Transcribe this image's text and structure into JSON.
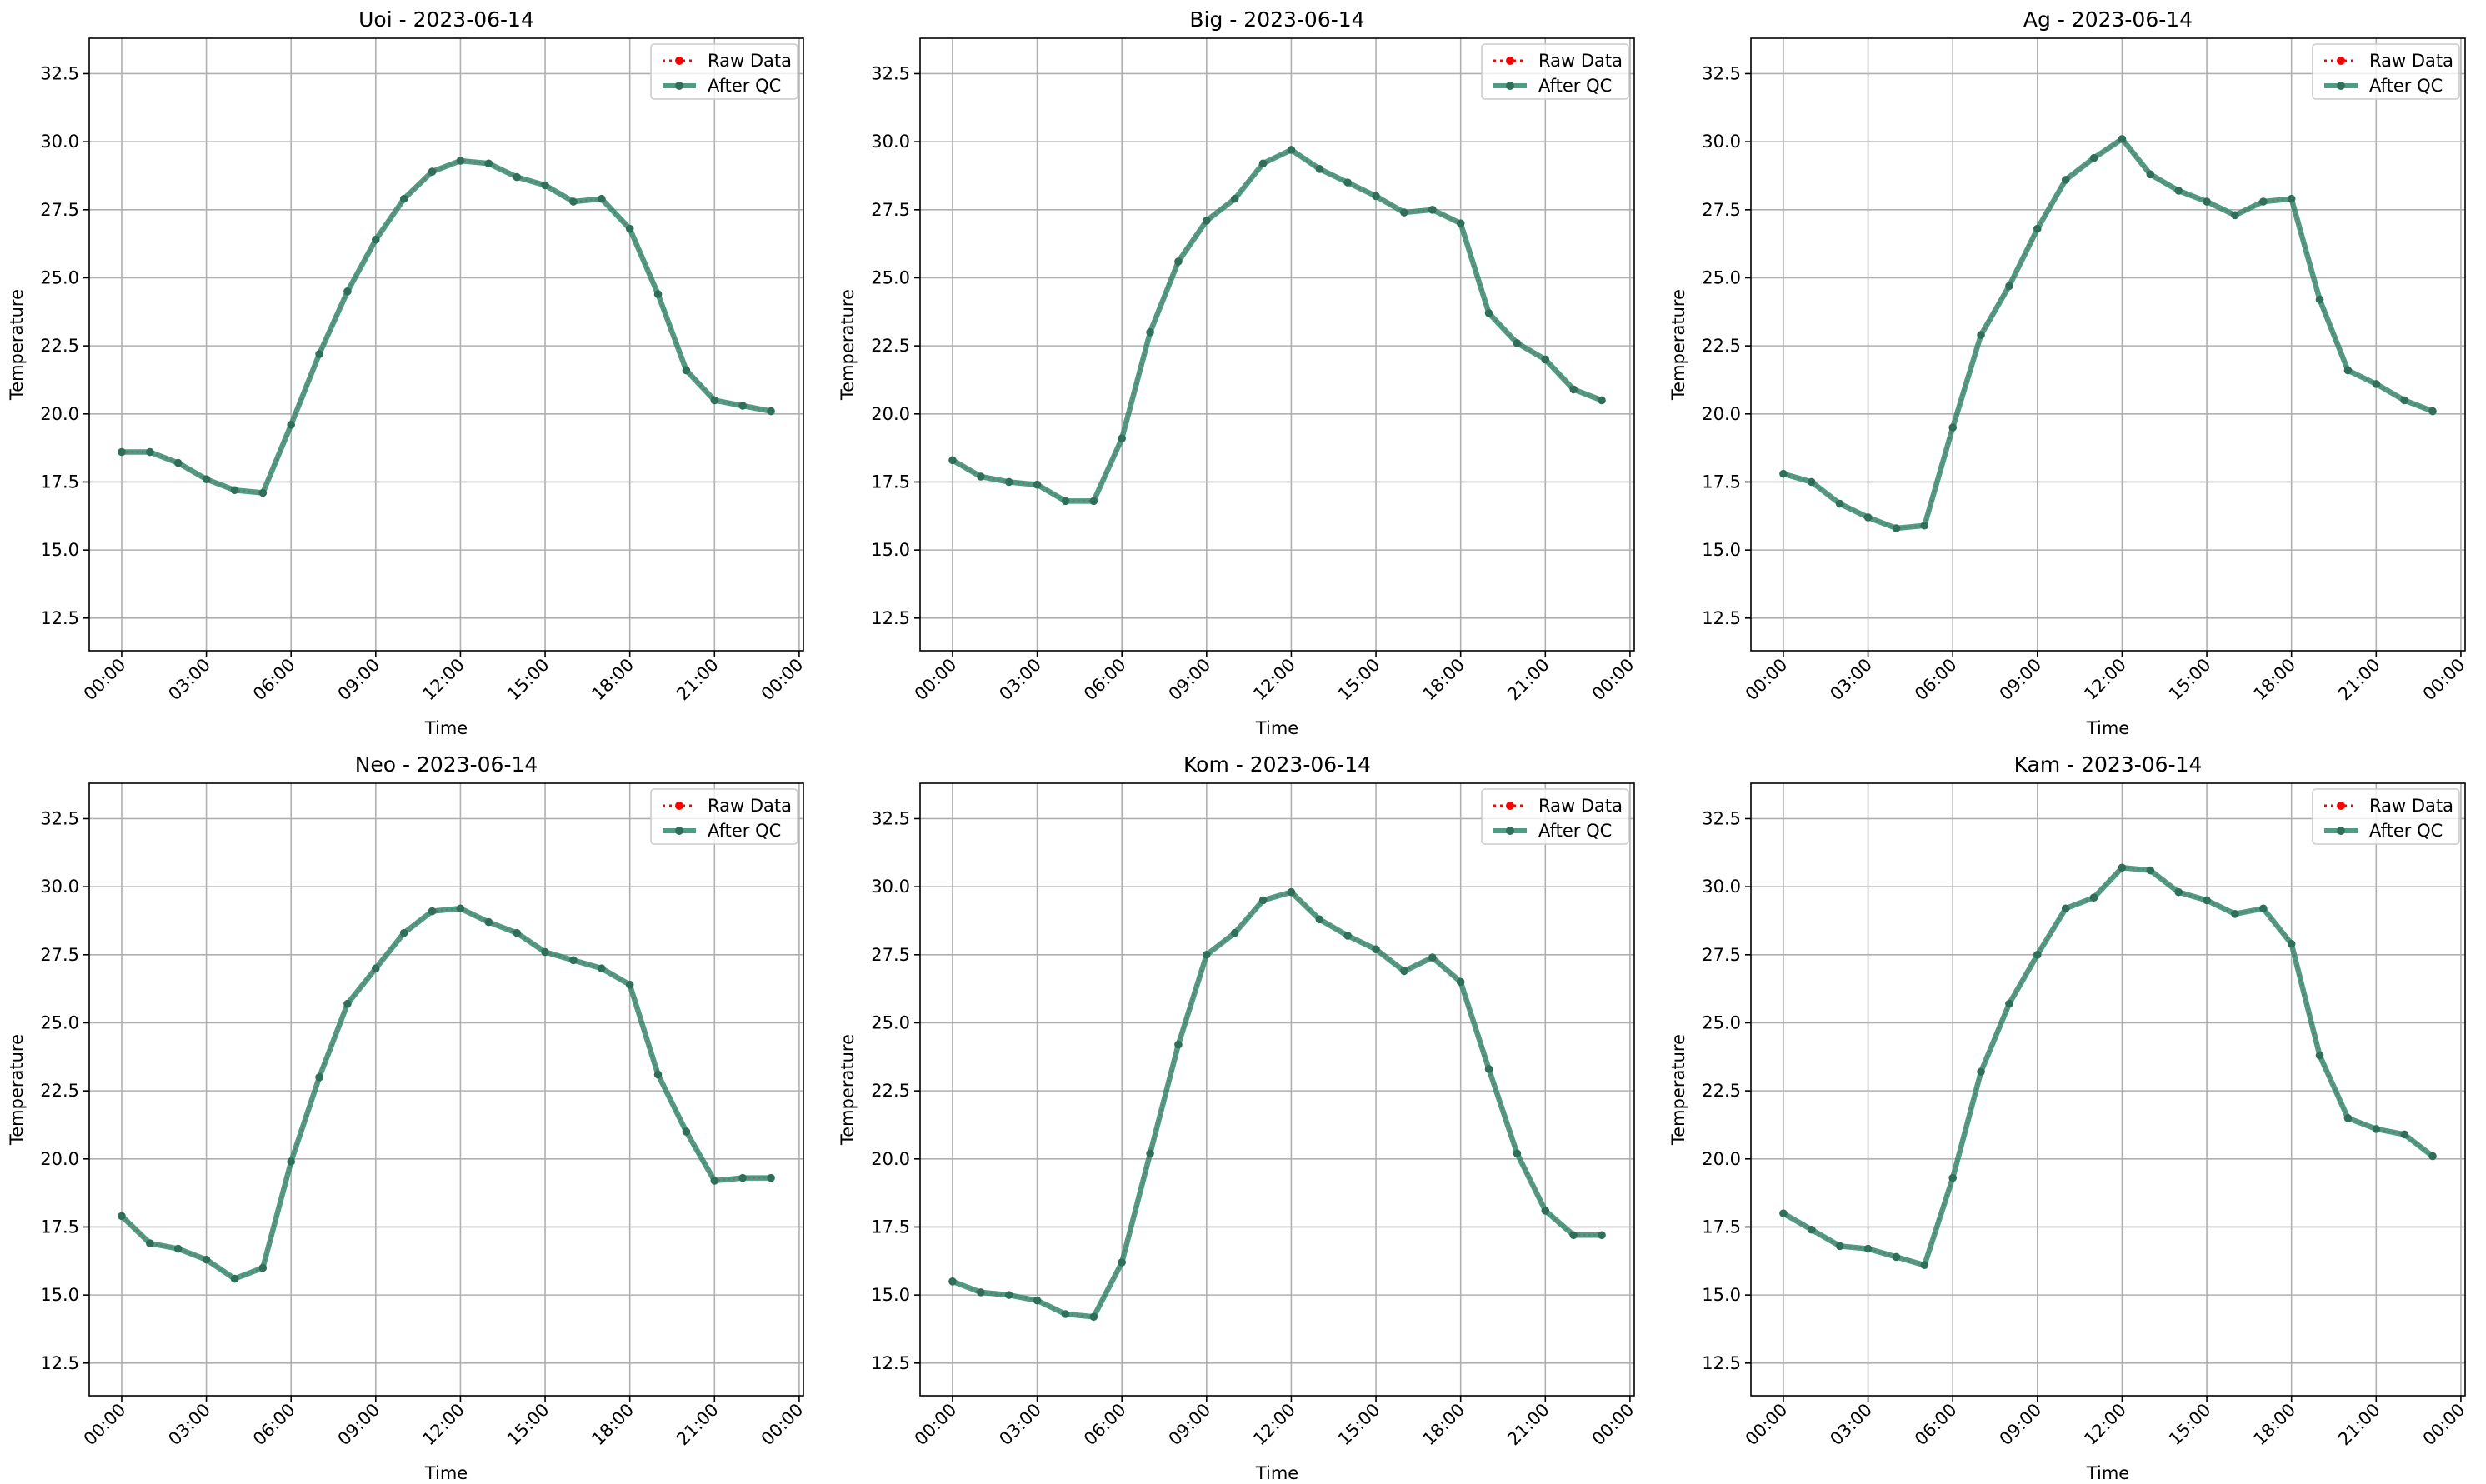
{
  "figure": {
    "style": {
      "raw_color": "#ff0000",
      "qc_color": "#2e8b6e",
      "qc_marker_color": "#2f6f5a",
      "grid_color": "#b0b0b0"
    }
  },
  "chart_data": [
    {
      "type": "line",
      "title": "Uoi - 2023-06-14",
      "xlabel": "Time",
      "ylabel": "Temperature",
      "x": [
        0,
        1,
        2,
        3,
        4,
        5,
        6,
        7,
        8,
        9,
        10,
        11,
        12,
        13,
        14,
        15,
        16,
        17,
        18,
        19,
        20,
        21,
        22,
        23
      ],
      "x_ticks": [
        "00:00",
        "03:00",
        "06:00",
        "09:00",
        "12:00",
        "15:00",
        "18:00",
        "21:00",
        "00:00"
      ],
      "xlim": [
        -1.15,
        24.15
      ],
      "ylim": [
        11.3,
        33.8
      ],
      "y_ticks": [
        "12.5",
        "15.0",
        "17.5",
        "20.0",
        "22.5",
        "25.0",
        "27.5",
        "30.0",
        "32.5"
      ],
      "grid": true,
      "legend_position": "upper right",
      "series": [
        {
          "name": "Raw Data",
          "style": "dotted-red-markers",
          "values": [
            18.6,
            18.6,
            18.2,
            17.6,
            17.2,
            17.1,
            19.6,
            22.2,
            24.5,
            26.4,
            27.9,
            28.9,
            29.3,
            29.2,
            28.7,
            28.4,
            27.8,
            27.9,
            26.8,
            24.4,
            21.6,
            20.5,
            20.3,
            20.1
          ]
        },
        {
          "name": "After QC",
          "style": "solid-green",
          "values": [
            18.6,
            18.6,
            18.2,
            17.6,
            17.2,
            17.1,
            19.6,
            22.2,
            24.5,
            26.4,
            27.9,
            28.9,
            29.3,
            29.2,
            28.7,
            28.4,
            27.8,
            27.9,
            26.8,
            24.4,
            21.6,
            20.5,
            20.3,
            20.1
          ]
        }
      ]
    },
    {
      "type": "line",
      "title": "Big - 2023-06-14",
      "xlabel": "Time",
      "ylabel": "Temperature",
      "x": [
        0,
        1,
        2,
        3,
        4,
        5,
        6,
        7,
        8,
        9,
        10,
        11,
        12,
        13,
        14,
        15,
        16,
        17,
        18,
        19,
        20,
        21,
        22,
        23
      ],
      "x_ticks": [
        "00:00",
        "03:00",
        "06:00",
        "09:00",
        "12:00",
        "15:00",
        "18:00",
        "21:00",
        "00:00"
      ],
      "xlim": [
        -1.15,
        24.15
      ],
      "ylim": [
        11.3,
        33.8
      ],
      "y_ticks": [
        "12.5",
        "15.0",
        "17.5",
        "20.0",
        "22.5",
        "25.0",
        "27.5",
        "30.0",
        "32.5"
      ],
      "grid": true,
      "legend_position": "upper right",
      "series": [
        {
          "name": "Raw Data",
          "style": "dotted-red-markers",
          "values": [
            18.3,
            17.7,
            17.5,
            17.4,
            16.8,
            16.8,
            19.1,
            23.0,
            25.6,
            27.1,
            27.9,
            29.2,
            29.7,
            29.0,
            28.5,
            28.0,
            27.4,
            27.5,
            27.0,
            23.7,
            22.6,
            22.0,
            20.9,
            20.5
          ]
        },
        {
          "name": "After QC",
          "style": "solid-green",
          "values": [
            18.3,
            17.7,
            17.5,
            17.4,
            16.8,
            16.8,
            19.1,
            23.0,
            25.6,
            27.1,
            27.9,
            29.2,
            29.7,
            29.0,
            28.5,
            28.0,
            27.4,
            27.5,
            27.0,
            23.7,
            22.6,
            22.0,
            20.9,
            20.5
          ]
        }
      ]
    },
    {
      "type": "line",
      "title": "Ag - 2023-06-14",
      "xlabel": "Time",
      "ylabel": "Temperature",
      "x": [
        0,
        1,
        2,
        3,
        4,
        5,
        6,
        7,
        8,
        9,
        10,
        11,
        12,
        13,
        14,
        15,
        16,
        17,
        18,
        19,
        20,
        21,
        22,
        23
      ],
      "x_ticks": [
        "00:00",
        "03:00",
        "06:00",
        "09:00",
        "12:00",
        "15:00",
        "18:00",
        "21:00",
        "00:00"
      ],
      "xlim": [
        -1.15,
        24.15
      ],
      "ylim": [
        11.3,
        33.8
      ],
      "y_ticks": [
        "12.5",
        "15.0",
        "17.5",
        "20.0",
        "22.5",
        "25.0",
        "27.5",
        "30.0",
        "32.5"
      ],
      "grid": true,
      "legend_position": "upper right",
      "series": [
        {
          "name": "Raw Data",
          "style": "dotted-red-markers",
          "values": [
            17.8,
            17.5,
            16.7,
            16.2,
            15.8,
            15.9,
            19.5,
            22.9,
            24.7,
            26.8,
            28.6,
            29.4,
            30.1,
            28.8,
            28.2,
            27.8,
            27.3,
            27.8,
            27.9,
            24.2,
            21.6,
            21.1,
            20.5,
            20.1
          ]
        },
        {
          "name": "After QC",
          "style": "solid-green",
          "values": [
            17.8,
            17.5,
            16.7,
            16.2,
            15.8,
            15.9,
            19.5,
            22.9,
            24.7,
            26.8,
            28.6,
            29.4,
            30.1,
            28.8,
            28.2,
            27.8,
            27.3,
            27.8,
            27.9,
            24.2,
            21.6,
            21.1,
            20.5,
            20.1
          ]
        }
      ]
    },
    {
      "type": "line",
      "title": "Neo - 2023-06-14",
      "xlabel": "Time",
      "ylabel": "Temperature",
      "x": [
        0,
        1,
        2,
        3,
        4,
        5,
        6,
        7,
        8,
        9,
        10,
        11,
        12,
        13,
        14,
        15,
        16,
        17,
        18,
        19,
        20,
        21,
        22,
        23
      ],
      "x_ticks": [
        "00:00",
        "03:00",
        "06:00",
        "09:00",
        "12:00",
        "15:00",
        "18:00",
        "21:00",
        "00:00"
      ],
      "xlim": [
        -1.15,
        24.15
      ],
      "ylim": [
        11.3,
        33.8
      ],
      "y_ticks": [
        "12.5",
        "15.0",
        "17.5",
        "20.0",
        "22.5",
        "25.0",
        "27.5",
        "30.0",
        "32.5"
      ],
      "grid": true,
      "legend_position": "upper right",
      "series": [
        {
          "name": "Raw Data",
          "style": "dotted-red-markers",
          "values": [
            17.9,
            16.9,
            16.7,
            16.3,
            15.6,
            16.0,
            19.9,
            23.0,
            25.7,
            27.0,
            28.3,
            29.1,
            29.2,
            28.7,
            28.3,
            27.6,
            27.3,
            27.0,
            26.4,
            23.1,
            21.0,
            19.2,
            19.3,
            19.3
          ]
        },
        {
          "name": "After QC",
          "style": "solid-green",
          "values": [
            17.9,
            16.9,
            16.7,
            16.3,
            15.6,
            16.0,
            19.9,
            23.0,
            25.7,
            27.0,
            28.3,
            29.1,
            29.2,
            28.7,
            28.3,
            27.6,
            27.3,
            27.0,
            26.4,
            23.1,
            21.0,
            19.2,
            19.3,
            19.3
          ]
        }
      ]
    },
    {
      "type": "line",
      "title": "Kom - 2023-06-14",
      "xlabel": "Time",
      "ylabel": "Temperature",
      "x": [
        0,
        1,
        2,
        3,
        4,
        5,
        6,
        7,
        8,
        9,
        10,
        11,
        12,
        13,
        14,
        15,
        16,
        17,
        18,
        19,
        20,
        21,
        22,
        23
      ],
      "x_ticks": [
        "00:00",
        "03:00",
        "06:00",
        "09:00",
        "12:00",
        "15:00",
        "18:00",
        "21:00",
        "00:00"
      ],
      "xlim": [
        -1.15,
        24.15
      ],
      "ylim": [
        11.3,
        33.8
      ],
      "y_ticks": [
        "12.5",
        "15.0",
        "17.5",
        "20.0",
        "22.5",
        "25.0",
        "27.5",
        "30.0",
        "32.5"
      ],
      "grid": true,
      "legend_position": "upper right",
      "series": [
        {
          "name": "Raw Data",
          "style": "dotted-red-markers",
          "values": [
            15.5,
            15.1,
            15.0,
            14.8,
            14.3,
            14.2,
            16.2,
            20.2,
            24.2,
            27.5,
            28.3,
            29.5,
            29.8,
            28.8,
            28.2,
            27.7,
            26.9,
            27.4,
            26.5,
            23.3,
            20.2,
            18.1,
            17.2,
            17.2
          ]
        },
        {
          "name": "After QC",
          "style": "solid-green",
          "values": [
            15.5,
            15.1,
            15.0,
            14.8,
            14.3,
            14.2,
            16.2,
            20.2,
            24.2,
            27.5,
            28.3,
            29.5,
            29.8,
            28.8,
            28.2,
            27.7,
            26.9,
            27.4,
            26.5,
            23.3,
            20.2,
            18.1,
            17.2,
            17.2
          ]
        }
      ]
    },
    {
      "type": "line",
      "title": "Kam - 2023-06-14",
      "xlabel": "Time",
      "ylabel": "Temperature",
      "x": [
        0,
        1,
        2,
        3,
        4,
        5,
        6,
        7,
        8,
        9,
        10,
        11,
        12,
        13,
        14,
        15,
        16,
        17,
        18,
        19,
        20,
        21,
        22,
        23
      ],
      "x_ticks": [
        "00:00",
        "03:00",
        "06:00",
        "09:00",
        "12:00",
        "15:00",
        "18:00",
        "21:00",
        "00:00"
      ],
      "xlim": [
        -1.15,
        24.15
      ],
      "ylim": [
        11.3,
        33.8
      ],
      "y_ticks": [
        "12.5",
        "15.0",
        "17.5",
        "20.0",
        "22.5",
        "25.0",
        "27.5",
        "30.0",
        "32.5"
      ],
      "grid": true,
      "legend_position": "upper right",
      "series": [
        {
          "name": "Raw Data",
          "style": "dotted-red-markers",
          "values": [
            18.0,
            17.4,
            16.8,
            16.7,
            16.4,
            16.1,
            19.3,
            23.2,
            25.7,
            27.5,
            29.2,
            29.6,
            30.7,
            30.6,
            29.8,
            29.5,
            29.0,
            29.2,
            27.9,
            23.8,
            21.5,
            21.1,
            20.9,
            20.1
          ]
        },
        {
          "name": "After QC",
          "style": "solid-green",
          "values": [
            18.0,
            17.4,
            16.8,
            16.7,
            16.4,
            16.1,
            19.3,
            23.2,
            25.7,
            27.5,
            29.2,
            29.6,
            30.7,
            30.6,
            29.8,
            29.5,
            29.0,
            29.2,
            27.9,
            23.8,
            21.5,
            21.1,
            20.9,
            20.1
          ]
        }
      ]
    }
  ]
}
